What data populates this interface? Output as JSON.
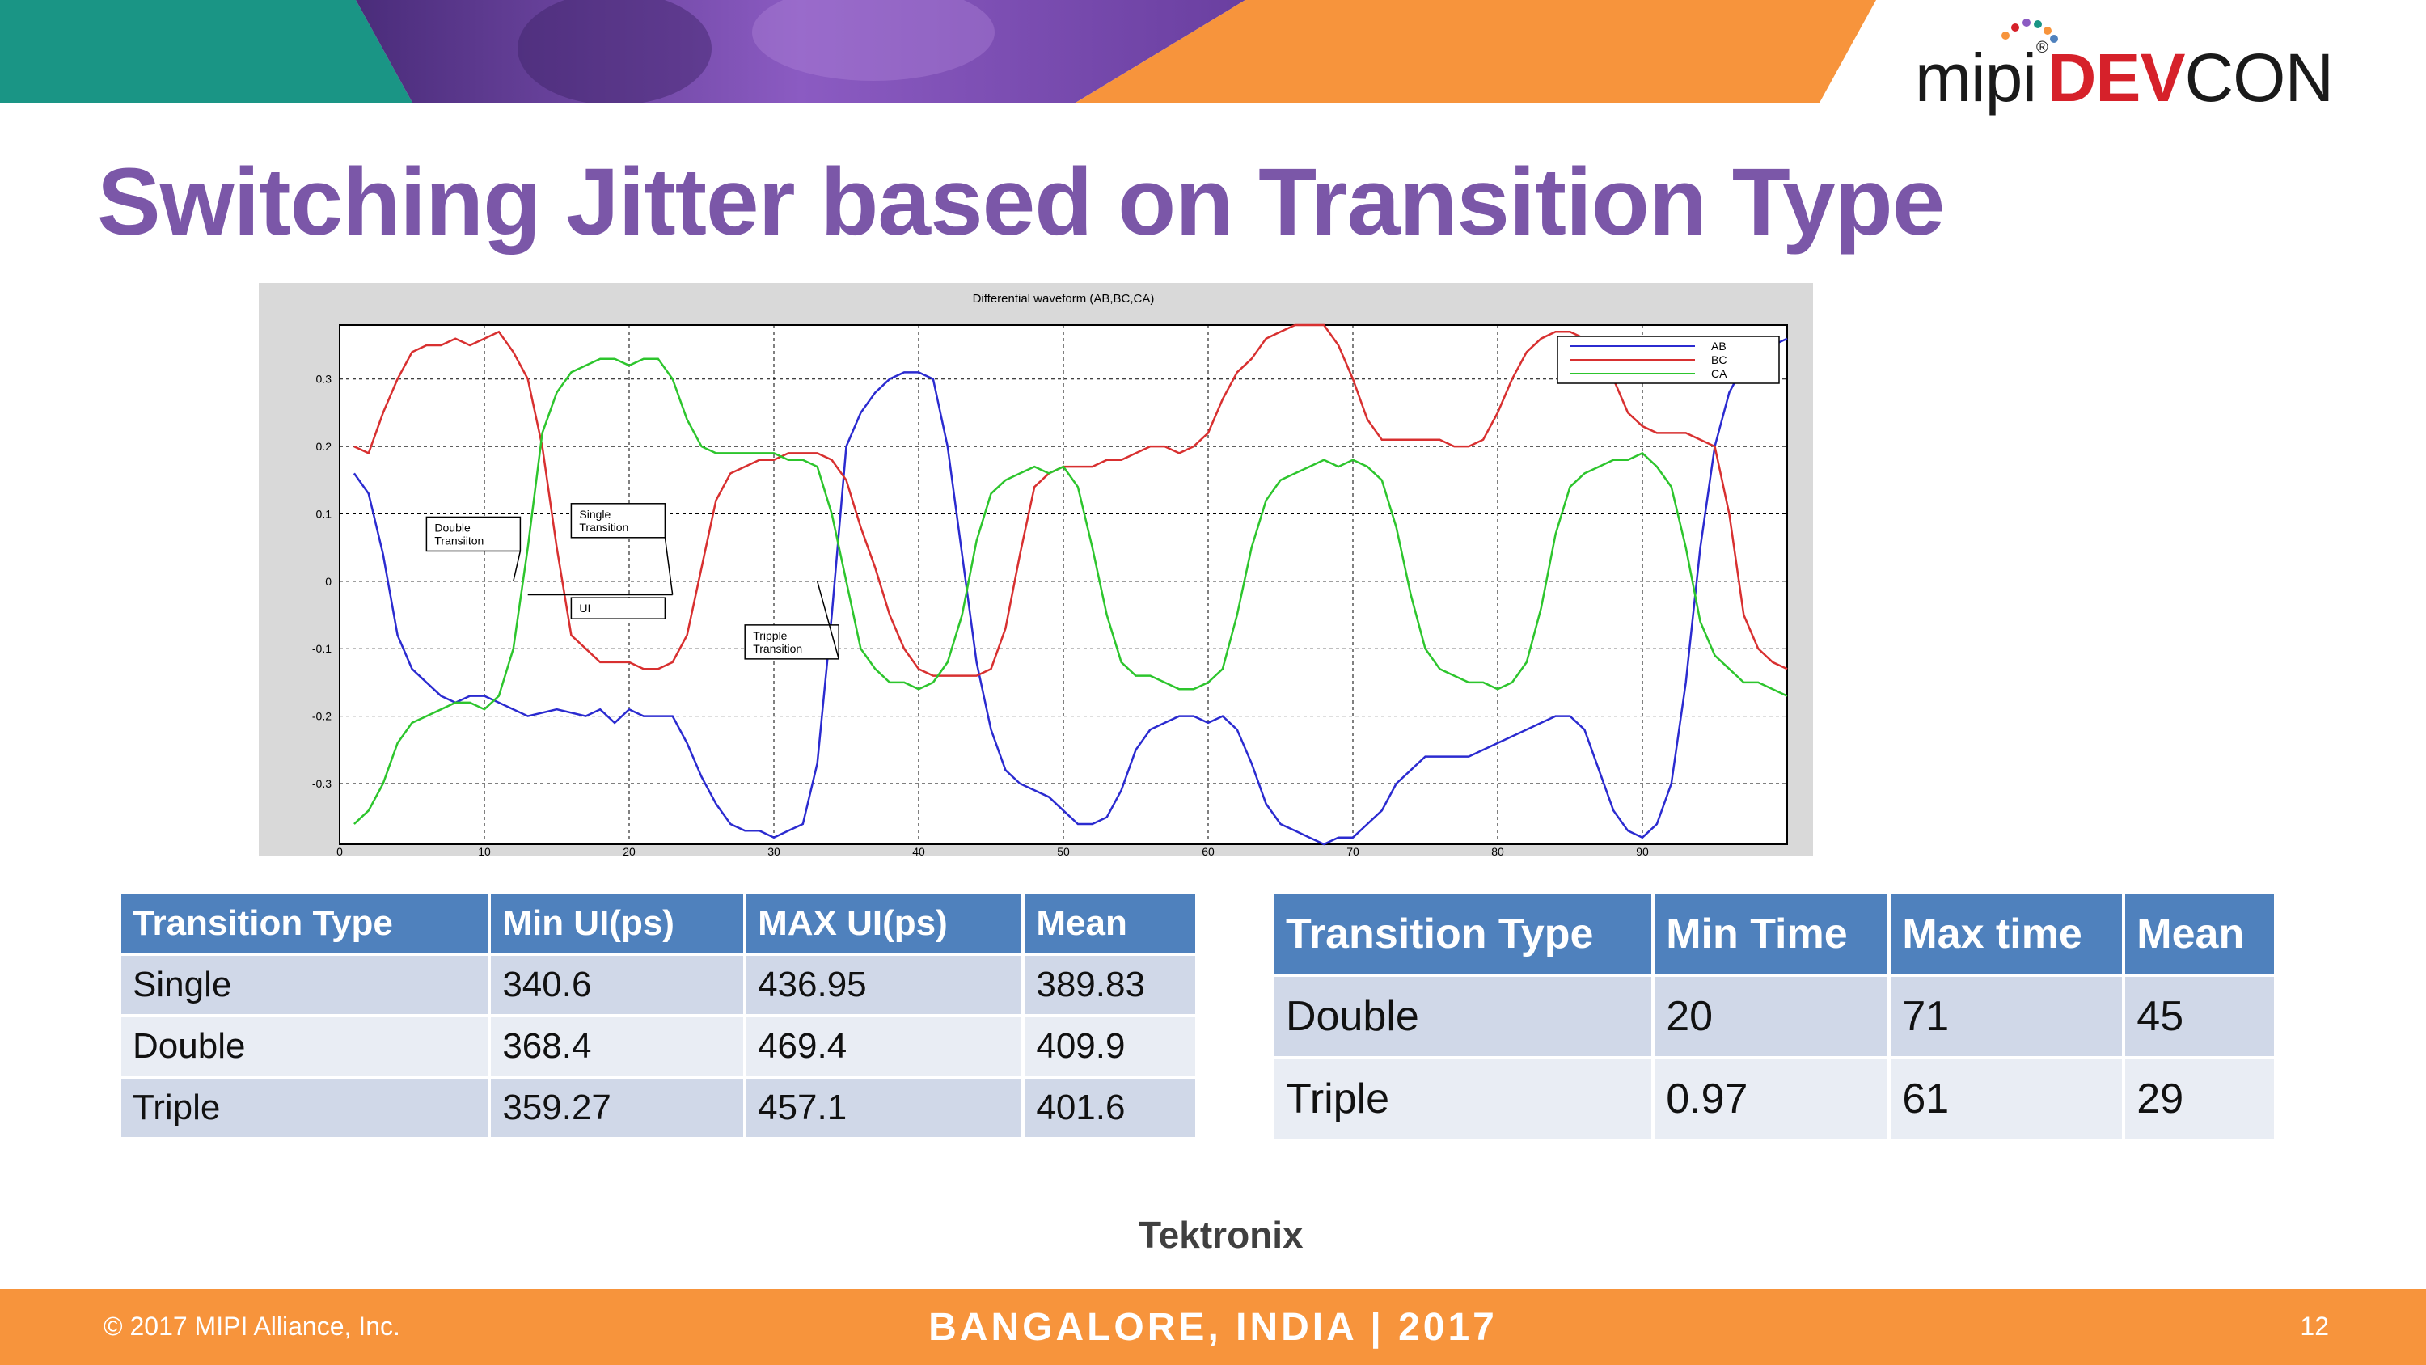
{
  "slide": {
    "title": "Switching Jitter based on Transition Type",
    "logo": {
      "prefix": "mipi",
      "reg": "®",
      "dev": "DEV",
      "con": "CON"
    },
    "source": "Tektronix"
  },
  "colors": {
    "title": "#7b57a8",
    "header": "#4f81bd",
    "row_odd": "#d0d8e8",
    "row_even": "#e9edf4",
    "footer": "#f7943c",
    "teal": "#1a9585",
    "purple": "#8b5bc2"
  },
  "chart_data": {
    "type": "line",
    "title": "Differential waveform (AB,BC,CA)",
    "xlim": [
      0,
      100
    ],
    "ylim": [
      -0.39,
      0.38
    ],
    "x_ticks": [
      0,
      10,
      20,
      30,
      40,
      50,
      60,
      70,
      80,
      90
    ],
    "y_ticks": [
      0.3,
      0.2,
      0.1,
      0,
      -0.1,
      -0.2,
      -0.3
    ],
    "y_tick_labels": [
      "0.3",
      "0.2",
      "0.1",
      "0",
      "-0.1",
      "-0.2",
      "-0.3"
    ],
    "grid": true,
    "legend_position": "top-right",
    "series": [
      {
        "name": "AB",
        "color": "#2b2bd0",
        "x": [
          1,
          2,
          3,
          4,
          5,
          6,
          7,
          8,
          9,
          10,
          11,
          12,
          13,
          15,
          17,
          18,
          19,
          20,
          21,
          22,
          23,
          24,
          25,
          26,
          27,
          28,
          29,
          30,
          31,
          32,
          33,
          34,
          35,
          36,
          37,
          38,
          39,
          40,
          41,
          42,
          43,
          44,
          45,
          46,
          47,
          48,
          49,
          50,
          51,
          52,
          53,
          54,
          55,
          56,
          57,
          58,
          59,
          60,
          61,
          62,
          63,
          64,
          65,
          66,
          67,
          68,
          69,
          70,
          71,
          72,
          73,
          74,
          75,
          76,
          77,
          78,
          79,
          80,
          81,
          82,
          83,
          84,
          85,
          86,
          87,
          88,
          89,
          90,
          91,
          92,
          93,
          94,
          95,
          96,
          97,
          98,
          99,
          100
        ],
        "y": [
          0.16,
          0.13,
          0.04,
          -0.08,
          -0.13,
          -0.15,
          -0.17,
          -0.18,
          -0.17,
          -0.17,
          -0.18,
          -0.19,
          -0.2,
          -0.19,
          -0.2,
          -0.19,
          -0.21,
          -0.19,
          -0.2,
          -0.2,
          -0.2,
          -0.24,
          -0.29,
          -0.33,
          -0.36,
          -0.37,
          -0.37,
          -0.38,
          -0.37,
          -0.36,
          -0.27,
          -0.05,
          0.2,
          0.25,
          0.28,
          0.3,
          0.31,
          0.31,
          0.3,
          0.2,
          0.04,
          -0.12,
          -0.22,
          -0.28,
          -0.3,
          -0.31,
          -0.32,
          -0.34,
          -0.36,
          -0.36,
          -0.35,
          -0.31,
          -0.25,
          -0.22,
          -0.21,
          -0.2,
          -0.2,
          -0.21,
          -0.2,
          -0.22,
          -0.27,
          -0.33,
          -0.36,
          -0.37,
          -0.38,
          -0.39,
          -0.38,
          -0.38,
          -0.36,
          -0.34,
          -0.3,
          -0.28,
          -0.26,
          -0.26,
          -0.26,
          -0.26,
          -0.25,
          -0.24,
          -0.23,
          -0.22,
          -0.21,
          -0.2,
          -0.2,
          -0.22,
          -0.28,
          -0.34,
          -0.37,
          -0.38,
          -0.36,
          -0.3,
          -0.15,
          0.05,
          0.2,
          0.28,
          0.32,
          0.34,
          0.35,
          0.36
        ]
      },
      {
        "name": "BC",
        "color": "#d83030",
        "x": [
          1,
          2,
          3,
          4,
          5,
          6,
          7,
          8,
          9,
          10,
          11,
          12,
          13,
          14,
          15,
          16,
          17,
          18,
          19,
          20,
          21,
          22,
          23,
          24,
          25,
          26,
          27,
          28,
          29,
          30,
          31,
          32,
          33,
          34,
          35,
          36,
          37,
          38,
          39,
          40,
          41,
          42,
          43,
          44,
          45,
          46,
          47,
          48,
          49,
          50,
          51,
          52,
          53,
          54,
          55,
          56,
          57,
          58,
          59,
          60,
          61,
          62,
          63,
          64,
          65,
          66,
          67,
          68,
          69,
          70,
          71,
          72,
          73,
          74,
          75,
          76,
          77,
          78,
          79,
          80,
          81,
          82,
          83,
          84,
          85,
          86,
          87,
          88,
          89,
          90,
          91,
          92,
          93,
          94,
          95,
          96,
          97,
          98,
          99,
          100
        ],
        "y": [
          0.2,
          0.19,
          0.25,
          0.3,
          0.34,
          0.35,
          0.35,
          0.36,
          0.35,
          0.36,
          0.37,
          0.34,
          0.3,
          0.2,
          0.05,
          -0.08,
          -0.1,
          -0.12,
          -0.12,
          -0.12,
          -0.13,
          -0.13,
          -0.12,
          -0.08,
          0.02,
          0.12,
          0.16,
          0.17,
          0.18,
          0.18,
          0.19,
          0.19,
          0.19,
          0.18,
          0.15,
          0.08,
          0.02,
          -0.05,
          -0.1,
          -0.13,
          -0.14,
          -0.14,
          -0.14,
          -0.14,
          -0.13,
          -0.07,
          0.04,
          0.14,
          0.16,
          0.17,
          0.17,
          0.17,
          0.18,
          0.18,
          0.19,
          0.2,
          0.2,
          0.19,
          0.2,
          0.22,
          0.27,
          0.31,
          0.33,
          0.36,
          0.37,
          0.38,
          0.38,
          0.38,
          0.35,
          0.3,
          0.24,
          0.21,
          0.21,
          0.21,
          0.21,
          0.21,
          0.2,
          0.2,
          0.21,
          0.25,
          0.3,
          0.34,
          0.36,
          0.37,
          0.37,
          0.36,
          0.34,
          0.3,
          0.25,
          0.23,
          0.22,
          0.22,
          0.22,
          0.21,
          0.2,
          0.1,
          -0.05,
          -0.1,
          -0.12,
          -0.13
        ]
      },
      {
        "name": "CA",
        "color": "#2dc52d",
        "x": [
          1,
          2,
          3,
          4,
          5,
          6,
          7,
          8,
          9,
          10,
          11,
          12,
          13,
          14,
          15,
          16,
          17,
          18,
          19,
          20,
          21,
          22,
          23,
          24,
          25,
          26,
          27,
          28,
          29,
          30,
          31,
          32,
          33,
          34,
          35,
          36,
          37,
          38,
          39,
          40,
          41,
          42,
          43,
          44,
          45,
          46,
          47,
          48,
          49,
          50,
          51,
          52,
          53,
          54,
          55,
          56,
          57,
          58,
          59,
          60,
          61,
          62,
          63,
          64,
          65,
          66,
          67,
          68,
          69,
          70,
          71,
          72,
          73,
          74,
          75,
          76,
          77,
          78,
          79,
          80,
          81,
          82,
          83,
          84,
          85,
          86,
          87,
          88,
          89,
          90,
          91,
          92,
          93,
          94,
          95,
          96,
          97,
          98,
          99,
          100
        ],
        "y": [
          -0.36,
          -0.34,
          -0.3,
          -0.24,
          -0.21,
          -0.2,
          -0.19,
          -0.18,
          -0.18,
          -0.19,
          -0.17,
          -0.1,
          0.05,
          0.22,
          0.28,
          0.31,
          0.32,
          0.33,
          0.33,
          0.32,
          0.33,
          0.33,
          0.3,
          0.24,
          0.2,
          0.19,
          0.19,
          0.19,
          0.19,
          0.19,
          0.18,
          0.18,
          0.17,
          0.1,
          0.0,
          -0.1,
          -0.13,
          -0.15,
          -0.15,
          -0.16,
          -0.15,
          -0.12,
          -0.05,
          0.06,
          0.13,
          0.15,
          0.16,
          0.17,
          0.16,
          0.17,
          0.14,
          0.05,
          -0.05,
          -0.12,
          -0.14,
          -0.14,
          -0.15,
          -0.16,
          -0.16,
          -0.15,
          -0.13,
          -0.05,
          0.05,
          0.12,
          0.15,
          0.16,
          0.17,
          0.18,
          0.17,
          0.18,
          0.17,
          0.15,
          0.08,
          -0.02,
          -0.1,
          -0.13,
          -0.14,
          -0.15,
          -0.15,
          -0.16,
          -0.15,
          -0.12,
          -0.04,
          0.07,
          0.14,
          0.16,
          0.17,
          0.18,
          0.18,
          0.19,
          0.17,
          0.14,
          0.05,
          -0.06,
          -0.11,
          -0.13,
          -0.15,
          -0.15,
          -0.16,
          -0.17
        ]
      }
    ],
    "annotations": [
      {
        "label": "Double\nTransiiton",
        "x": 6,
        "y": 0.07,
        "target_x": 12,
        "target_y": -0.0
      },
      {
        "label": "Single\nTransition",
        "x": 16,
        "y": 0.09,
        "target_x": 23,
        "target_y": -0.02
      },
      {
        "label": "UI",
        "x": 16,
        "y": -0.04
      },
      {
        "label": "Tripple\nTransition",
        "x": 28,
        "y": -0.09,
        "target_x": 33,
        "target_y": 0.0
      }
    ]
  },
  "table1": {
    "headers": [
      "Transition Type",
      "Min UI(ps)",
      "MAX UI(ps)",
      "Mean"
    ],
    "rows": [
      [
        "Single",
        "340.6",
        "436.95",
        "389.83"
      ],
      [
        "Double",
        "368.4",
        "469.4",
        "409.9"
      ],
      [
        "Triple",
        "359.27",
        "457.1",
        "401.6"
      ]
    ]
  },
  "table2": {
    "headers": [
      "Transition Type",
      "Min Time",
      "Max time",
      "Mean"
    ],
    "rows": [
      [
        "Double",
        "20",
        "71",
        "45"
      ],
      [
        "Triple",
        "0.97",
        "61",
        "29"
      ]
    ]
  },
  "footer": {
    "copyright": "© 2017 MIPI Alliance, Inc.",
    "event": "BANGALORE, INDIA | 2017",
    "page": "12"
  }
}
